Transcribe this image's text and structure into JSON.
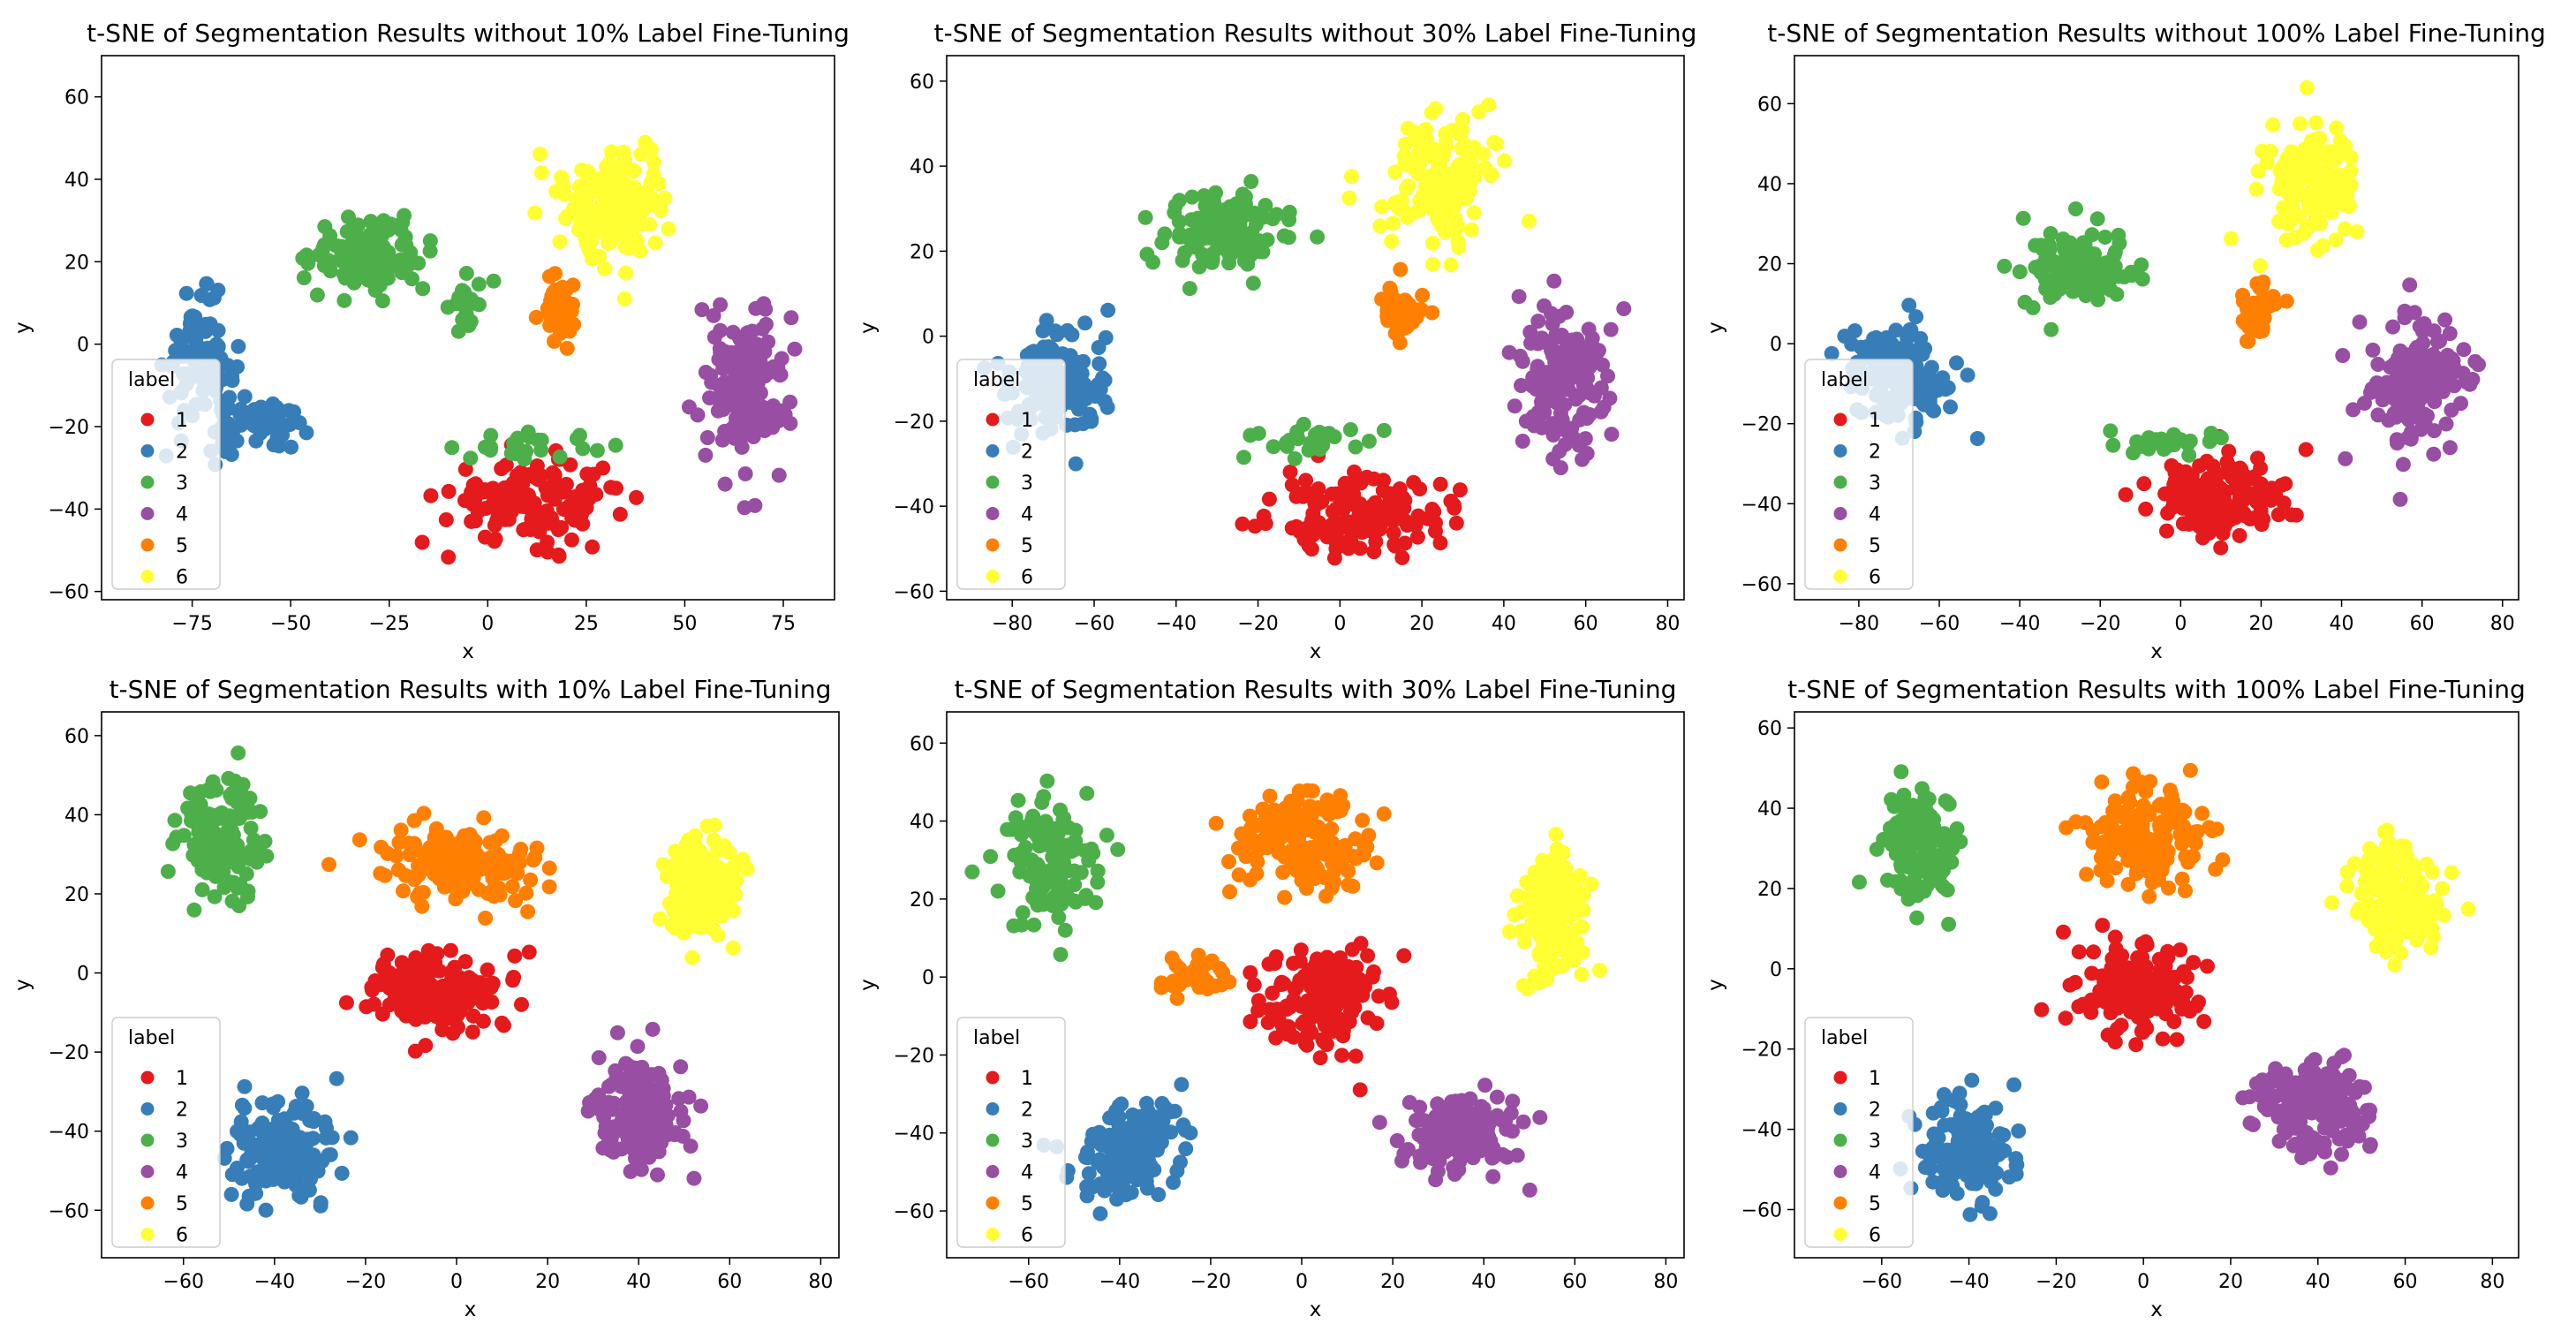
{
  "figure": {
    "background": "#ffffff"
  },
  "chart_data": [
    {
      "type": "scatter",
      "title": "t-SNE of Segmentation Results without 10% Label Fine-Tuning",
      "xlabel": "x",
      "ylabel": "y",
      "xlim": [
        -98,
        88
      ],
      "ylim": [
        -62,
        70
      ],
      "xticks": [
        -75,
        -50,
        -25,
        0,
        25,
        50,
        75
      ],
      "yticks": [
        -60,
        -40,
        -20,
        0,
        20,
        40,
        60
      ],
      "legend": {
        "title": "label",
        "location": "lower-left"
      },
      "series": [
        {
          "name": "1",
          "color": "#e41a1c",
          "clusters": [
            {
              "cx": 12,
              "cy": -38,
              "sx": 20,
              "sy": 9,
              "n": 150
            }
          ]
        },
        {
          "name": "2",
          "color": "#377eb8",
          "clusters": [
            {
              "cx": -73,
              "cy": -5,
              "sx": 8,
              "sy": 14,
              "n": 95
            },
            {
              "cx": -58,
              "cy": -20,
              "sx": 10,
              "sy": 6,
              "n": 55
            }
          ]
        },
        {
          "name": "3",
          "color": "#4daf4a",
          "clusters": [
            {
              "cx": -30,
              "cy": 22,
              "sx": 13,
              "sy": 8,
              "n": 115
            },
            {
              "cx": -5,
              "cy": 10,
              "sx": 6,
              "sy": 6,
              "n": 20
            },
            {
              "cx": 10,
              "cy": -25,
              "sx": 16,
              "sy": 3,
              "n": 25
            }
          ]
        },
        {
          "name": "4",
          "color": "#984ea3",
          "clusters": [
            {
              "cx": 65,
              "cy": -10,
              "sx": 10,
              "sy": 18,
              "n": 150
            }
          ]
        },
        {
          "name": "5",
          "color": "#ff7f00",
          "clusters": [
            {
              "cx": 18,
              "cy": 8,
              "sx": 4,
              "sy": 8,
              "n": 40
            }
          ]
        },
        {
          "name": "6",
          "color": "#ffff33",
          "clusters": [
            {
              "cx": 33,
              "cy": 35,
              "sx": 12,
              "sy": 13,
              "n": 150
            }
          ]
        }
      ]
    },
    {
      "type": "scatter",
      "title": "t-SNE of Segmentation Results without 30% Label Fine-Tuning",
      "xlabel": "x",
      "ylabel": "y",
      "xlim": [
        -96,
        84
      ],
      "ylim": [
        -62,
        66
      ],
      "xticks": [
        -80,
        -60,
        -40,
        -20,
        0,
        20,
        40,
        60,
        80
      ],
      "yticks": [
        -60,
        -40,
        -20,
        0,
        20,
        40,
        60
      ],
      "legend": {
        "title": "label",
        "location": "lower-left"
      },
      "series": [
        {
          "name": "1",
          "color": "#e41a1c",
          "clusters": [
            {
              "cx": 5,
              "cy": -42,
              "sx": 18,
              "sy": 8,
              "n": 150
            }
          ]
        },
        {
          "name": "2",
          "color": "#377eb8",
          "clusters": [
            {
              "cx": -70,
              "cy": -10,
              "sx": 12,
              "sy": 12,
              "n": 140
            }
          ]
        },
        {
          "name": "3",
          "color": "#4daf4a",
          "clusters": [
            {
              "cx": -28,
              "cy": 25,
              "sx": 13,
              "sy": 9,
              "n": 115
            },
            {
              "cx": -3,
              "cy": -25,
              "sx": 18,
              "sy": 3,
              "n": 25
            }
          ]
        },
        {
          "name": "4",
          "color": "#984ea3",
          "clusters": [
            {
              "cx": 55,
              "cy": -10,
              "sx": 10,
              "sy": 17,
              "n": 150
            }
          ]
        },
        {
          "name": "5",
          "color": "#ff7f00",
          "clusters": [
            {
              "cx": 15,
              "cy": 5,
              "sx": 5,
              "sy": 6,
              "n": 45
            }
          ]
        },
        {
          "name": "6",
          "color": "#ffff33",
          "clusters": [
            {
              "cx": 25,
              "cy": 37,
              "sx": 12,
              "sy": 13,
              "n": 150
            }
          ]
        }
      ]
    },
    {
      "type": "scatter",
      "title": "t-SNE of Segmentation Results without 100% Label Fine-Tuning",
      "xlabel": "x",
      "ylabel": "y",
      "xlim": [
        -96,
        84
      ],
      "ylim": [
        -64,
        72
      ],
      "xticks": [
        -80,
        -60,
        -40,
        -20,
        0,
        20,
        40,
        60,
        80
      ],
      "yticks": [
        -60,
        -40,
        -20,
        0,
        20,
        40,
        60
      ],
      "legend": {
        "title": "label",
        "location": "lower-left"
      },
      "series": [
        {
          "name": "1",
          "color": "#e41a1c",
          "clusters": [
            {
              "cx": 10,
              "cy": -38,
              "sx": 16,
              "sy": 9,
              "n": 150
            }
          ]
        },
        {
          "name": "2",
          "color": "#377eb8",
          "clusters": [
            {
              "cx": -70,
              "cy": -8,
              "sx": 11,
              "sy": 12,
              "n": 140
            }
          ]
        },
        {
          "name": "3",
          "color": "#4daf4a",
          "clusters": [
            {
              "cx": -25,
              "cy": 18,
              "sx": 13,
              "sy": 9,
              "n": 115
            },
            {
              "cx": -5,
              "cy": -25,
              "sx": 16,
              "sy": 3,
              "n": 25
            }
          ]
        },
        {
          "name": "4",
          "color": "#984ea3",
          "clusters": [
            {
              "cx": 58,
              "cy": -10,
              "sx": 11,
              "sy": 16,
              "n": 150
            }
          ]
        },
        {
          "name": "5",
          "color": "#ff7f00",
          "clusters": [
            {
              "cx": 20,
              "cy": 8,
              "sx": 4,
              "sy": 7,
              "n": 40
            }
          ]
        },
        {
          "name": "6",
          "color": "#ffff33",
          "clusters": [
            {
              "cx": 33,
              "cy": 40,
              "sx": 11,
              "sy": 13,
              "n": 150
            }
          ]
        }
      ]
    },
    {
      "type": "scatter",
      "title": "t-SNE of Segmentation Results with 10% Label Fine-Tuning",
      "xlabel": "x",
      "ylabel": "y",
      "xlim": [
        -78,
        84
      ],
      "ylim": [
        -72,
        66
      ],
      "xticks": [
        -60,
        -40,
        -20,
        0,
        20,
        40,
        60,
        80
      ],
      "yticks": [
        -60,
        -40,
        -20,
        0,
        20,
        40,
        60
      ],
      "legend": {
        "title": "label",
        "location": "lower-left"
      },
      "series": [
        {
          "name": "1",
          "color": "#e41a1c",
          "clusters": [
            {
              "cx": -5,
              "cy": -5,
              "sx": 13,
              "sy": 10,
              "n": 150
            }
          ]
        },
        {
          "name": "2",
          "color": "#377eb8",
          "clusters": [
            {
              "cx": -38,
              "cy": -45,
              "sx": 10,
              "sy": 12,
              "n": 150
            }
          ]
        },
        {
          "name": "3",
          "color": "#4daf4a",
          "clusters": [
            {
              "cx": -52,
              "cy": 35,
              "sx": 8,
              "sy": 13,
              "n": 140
            }
          ]
        },
        {
          "name": "4",
          "color": "#984ea3",
          "clusters": [
            {
              "cx": 40,
              "cy": -35,
              "sx": 9,
              "sy": 13,
              "n": 150
            }
          ]
        },
        {
          "name": "5",
          "color": "#ff7f00",
          "clusters": [
            {
              "cx": 0,
              "cy": 28,
              "sx": 16,
              "sy": 9,
              "n": 150
            }
          ]
        },
        {
          "name": "6",
          "color": "#ffff33",
          "clusters": [
            {
              "cx": 55,
              "cy": 22,
              "sx": 8,
              "sy": 12,
              "n": 150
            }
          ]
        }
      ]
    },
    {
      "type": "scatter",
      "title": "t-SNE of Segmentation Results with 30% Label Fine-Tuning",
      "xlabel": "x",
      "ylabel": "y",
      "xlim": [
        -78,
        84
      ],
      "ylim": [
        -72,
        68
      ],
      "xticks": [
        -60,
        -40,
        -20,
        0,
        20,
        40,
        60,
        80
      ],
      "yticks": [
        -60,
        -40,
        -20,
        0,
        20,
        40,
        60
      ],
      "legend": {
        "title": "label",
        "location": "lower-left"
      },
      "series": [
        {
          "name": "1",
          "color": "#e41a1c",
          "clusters": [
            {
              "cx": 5,
              "cy": -5,
              "sx": 12,
              "sy": 13,
              "n": 150
            }
          ]
        },
        {
          "name": "2",
          "color": "#377eb8",
          "clusters": [
            {
              "cx": -38,
              "cy": -45,
              "sx": 10,
              "sy": 11,
              "n": 150
            }
          ]
        },
        {
          "name": "3",
          "color": "#4daf4a",
          "clusters": [
            {
              "cx": -55,
              "cy": 30,
              "sx": 9,
              "sy": 15,
              "n": 140
            }
          ]
        },
        {
          "name": "4",
          "color": "#984ea3",
          "clusters": [
            {
              "cx": 35,
              "cy": -40,
              "sx": 11,
              "sy": 9,
              "n": 150
            }
          ]
        },
        {
          "name": "5",
          "color": "#ff7f00",
          "clusters": [
            {
              "cx": 0,
              "cy": 35,
              "sx": 14,
              "sy": 11,
              "n": 150
            },
            {
              "cx": -25,
              "cy": 0,
              "sx": 8,
              "sy": 5,
              "n": 35
            }
          ]
        },
        {
          "name": "6",
          "color": "#ffff33",
          "clusters": [
            {
              "cx": 55,
              "cy": 15,
              "sx": 7,
              "sy": 14,
              "n": 150
            }
          ]
        }
      ]
    },
    {
      "type": "scatter",
      "title": "t-SNE of Segmentation Results with 100% Label Fine-Tuning",
      "xlabel": "x",
      "ylabel": "y",
      "xlim": [
        -80,
        86
      ],
      "ylim": [
        -72,
        64
      ],
      "xticks": [
        -60,
        -40,
        -20,
        0,
        20,
        40,
        60,
        80
      ],
      "yticks": [
        -60,
        -40,
        -20,
        0,
        20,
        40,
        60
      ],
      "legend": {
        "title": "label",
        "location": "lower-left"
      },
      "series": [
        {
          "name": "1",
          "color": "#e41a1c",
          "clusters": [
            {
              "cx": 0,
              "cy": -5,
              "sx": 13,
              "sy": 10,
              "n": 150
            }
          ]
        },
        {
          "name": "2",
          "color": "#377eb8",
          "clusters": [
            {
              "cx": -40,
              "cy": -45,
              "sx": 10,
              "sy": 11,
              "n": 150
            }
          ]
        },
        {
          "name": "3",
          "color": "#4daf4a",
          "clusters": [
            {
              "cx": -52,
              "cy": 32,
              "sx": 8,
              "sy": 14,
              "n": 140
            }
          ]
        },
        {
          "name": "4",
          "color": "#984ea3",
          "clusters": [
            {
              "cx": 40,
              "cy": -35,
              "sx": 12,
              "sy": 12,
              "n": 150
            }
          ]
        },
        {
          "name": "5",
          "color": "#ff7f00",
          "clusters": [
            {
              "cx": 0,
              "cy": 32,
              "sx": 13,
              "sy": 11,
              "n": 150
            }
          ]
        },
        {
          "name": "6",
          "color": "#ffff33",
          "clusters": [
            {
              "cx": 58,
              "cy": 18,
              "sx": 8,
              "sy": 13,
              "n": 150
            }
          ]
        }
      ]
    }
  ]
}
